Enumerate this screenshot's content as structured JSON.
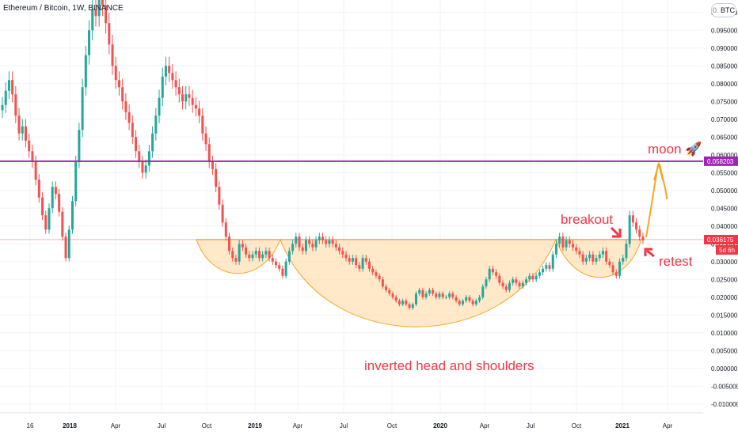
{
  "header": {
    "title": "Ethereum / Bitcoin, 1W, BINANCE",
    "currency": "BTC",
    "currency_prefix": "0."
  },
  "chart_data": {
    "type": "candlestick",
    "title": "Ethereum / Bitcoin, 1W, BINANCE",
    "ylim": [
      -0.0125,
      0.1035
    ],
    "yticks": [
      0.1,
      0.095,
      0.09,
      0.085,
      0.08,
      0.075,
      0.07,
      0.065,
      0.06,
      0.055,
      0.05,
      0.045,
      0.04,
      0.035,
      0.03,
      0.025,
      0.02,
      0.015,
      0.01,
      0.005,
      0.0,
      -0.005,
      -0.01
    ],
    "ytick_labels": [
      "0.100000",
      "0.095000",
      "0.090000",
      "0.085000",
      "0.080000",
      "0.075000",
      "0.070000",
      "0.065000",
      "0.060000",
      "0.055000",
      "0.050000",
      "0.045000",
      "0.040000",
      "0.035000",
      "0.030000",
      "0.025000",
      "0.020000",
      "0.015000",
      "0.010000",
      "0.005000",
      "0.000000",
      "-0.005000",
      "-0.010000"
    ],
    "xtick_labels": [
      {
        "label": "16",
        "bold": false
      },
      {
        "label": "2018",
        "bold": true
      },
      {
        "label": "Apr",
        "bold": false
      },
      {
        "label": "Jul",
        "bold": false
      },
      {
        "label": "Oct",
        "bold": false
      },
      {
        "label": "2019",
        "bold": true
      },
      {
        "label": "Apr",
        "bold": false
      },
      {
        "label": "Jul",
        "bold": false
      },
      {
        "label": "Oct",
        "bold": false
      },
      {
        "label": "2020",
        "bold": true
      },
      {
        "label": "Apr",
        "bold": false
      },
      {
        "label": "Jul",
        "bold": false
      },
      {
        "label": "Oct",
        "bold": false
      },
      {
        "label": "2021",
        "bold": true
      },
      {
        "label": "Apr",
        "bold": false
      }
    ],
    "closes": [
      0.074,
      0.078,
      0.081,
      0.077,
      0.071,
      0.066,
      0.068,
      0.064,
      0.061,
      0.058,
      0.053,
      0.048,
      0.043,
      0.039,
      0.045,
      0.051,
      0.049,
      0.044,
      0.037,
      0.031,
      0.039,
      0.047,
      0.058,
      0.067,
      0.079,
      0.088,
      0.095,
      0.101,
      0.099,
      0.104,
      0.102,
      0.097,
      0.091,
      0.085,
      0.081,
      0.079,
      0.075,
      0.072,
      0.069,
      0.065,
      0.061,
      0.058,
      0.055,
      0.057,
      0.061,
      0.066,
      0.071,
      0.076,
      0.082,
      0.085,
      0.083,
      0.081,
      0.079,
      0.077,
      0.075,
      0.077,
      0.076,
      0.074,
      0.073,
      0.071,
      0.066,
      0.063,
      0.058,
      0.056,
      0.051,
      0.046,
      0.041,
      0.037,
      0.033,
      0.031,
      0.03,
      0.035,
      0.034,
      0.032,
      0.031,
      0.032,
      0.033,
      0.031,
      0.032,
      0.033,
      0.031,
      0.03,
      0.029,
      0.028,
      0.026,
      0.03,
      0.033,
      0.035,
      0.037,
      0.034,
      0.033,
      0.036,
      0.035,
      0.034,
      0.036,
      0.037,
      0.036,
      0.035,
      0.036,
      0.035,
      0.034,
      0.033,
      0.032,
      0.031,
      0.03,
      0.031,
      0.029,
      0.028,
      0.031,
      0.03,
      0.028,
      0.027,
      0.026,
      0.025,
      0.023,
      0.022,
      0.021,
      0.02,
      0.019,
      0.018,
      0.019,
      0.018,
      0.017,
      0.018,
      0.021,
      0.022,
      0.02,
      0.021,
      0.022,
      0.021,
      0.02,
      0.021,
      0.02,
      0.02,
      0.021,
      0.02,
      0.019,
      0.018,
      0.019,
      0.02,
      0.019,
      0.018,
      0.019,
      0.02,
      0.023,
      0.025,
      0.028,
      0.027,
      0.026,
      0.024,
      0.023,
      0.022,
      0.024,
      0.025,
      0.024,
      0.023,
      0.024,
      0.025,
      0.026,
      0.025,
      0.026,
      0.027,
      0.028,
      0.029,
      0.028,
      0.032,
      0.035,
      0.037,
      0.034,
      0.036,
      0.035,
      0.034,
      0.033,
      0.032,
      0.03,
      0.031,
      0.032,
      0.03,
      0.031,
      0.032,
      0.033,
      0.03,
      0.029,
      0.027,
      0.026,
      0.03,
      0.031,
      0.035,
      0.043,
      0.041,
      0.039,
      0.037,
      0.036
    ],
    "series": [
      {
        "name": "horizontal-level",
        "value": 0.058203,
        "color": "#9c27b0"
      },
      {
        "name": "last-price",
        "value": 0.036175,
        "color": "#f23645"
      }
    ],
    "price_badges": [
      {
        "label": "0.058203",
        "color": "#9c27b0"
      },
      {
        "label": "0.036175",
        "color": "#f23645"
      },
      {
        "label": "5d 6h",
        "color": "#f23645"
      }
    ],
    "annotations": {
      "moon": "moon 🚀",
      "breakout": "breakout",
      "retest": "retest",
      "pattern": "inverted head and shoulders"
    },
    "colors": {
      "up": "#26a69a",
      "down": "#ef5350",
      "pattern_fill": "#ffe0b2",
      "pattern_stroke": "#f5a623",
      "arrow_orange": "#f5a623",
      "arrow_red": "#f23645"
    }
  }
}
